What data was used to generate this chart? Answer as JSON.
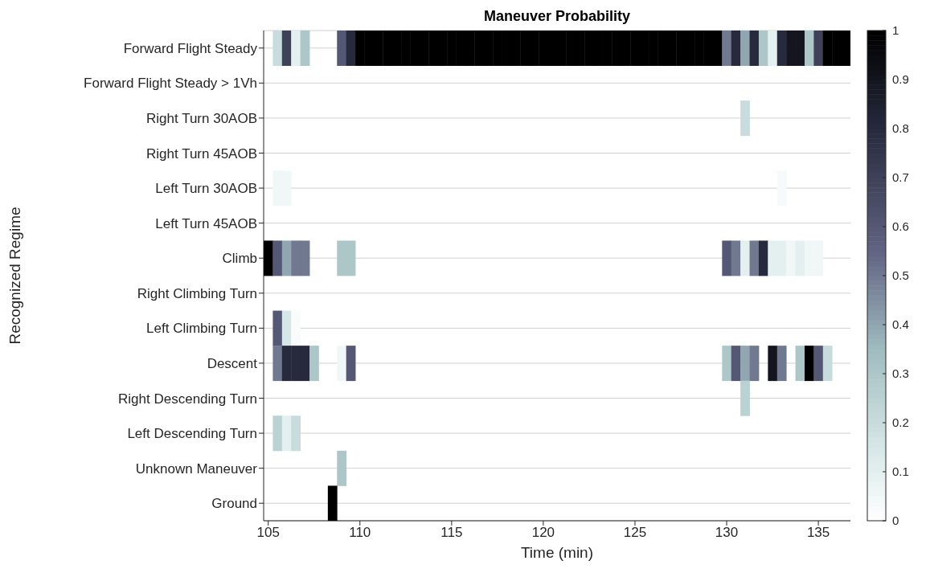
{
  "chart_data": {
    "type": "heatmap",
    "title": "Maneuver Probability",
    "xlabel": "Time (min)",
    "ylabel": "Recognized Regime",
    "x": [
      105,
      105.5,
      106,
      106.5,
      107,
      107.5,
      108,
      108.5,
      109,
      109.5,
      110,
      110.5,
      111,
      111.5,
      112,
      112.5,
      113,
      113.5,
      114,
      114.5,
      115,
      115.5,
      116,
      116.5,
      117,
      117.5,
      118,
      118.5,
      119,
      119.5,
      120,
      120.5,
      121,
      121.5,
      122,
      122.5,
      123,
      123.5,
      124,
      124.5,
      125,
      125.5,
      126,
      126.5,
      127,
      127.5,
      128,
      128.5,
      129,
      129.5,
      130,
      130.5,
      131,
      131.5,
      132,
      132.5,
      133,
      133.5,
      134,
      134.5,
      135,
      135.5,
      136,
      136.5
    ],
    "y_categories": [
      "Forward Flight Steady",
      "Forward Flight Steady > 1Vh",
      "Right Turn 30AOB",
      "Right Turn 45AOB",
      "Left Turn 30AOB",
      "Left Turn 45AOB",
      "Climb",
      "Right Climbing Turn",
      "Left Climbing Turn",
      "Descent",
      "Right Descending Turn",
      "Left Descending Turn",
      "Unknown Maneuver",
      "Ground"
    ],
    "cells": [
      [
        0,
        0.2,
        0.7,
        0.1,
        0.3,
        0,
        0,
        0,
        0.6,
        0.8,
        1,
        1,
        1,
        1,
        1,
        1,
        1,
        1,
        1,
        1,
        1,
        1,
        1,
        1,
        1,
        1,
        1,
        1,
        1,
        1,
        1,
        1,
        1,
        1,
        1,
        1,
        1,
        1,
        1,
        1,
        1,
        1,
        1,
        1,
        1,
        1,
        1,
        1,
        1,
        1,
        0.5,
        0.8,
        0.4,
        0.8,
        0.3,
        0.1,
        0.8,
        0.9,
        0.9,
        0.3,
        0.7,
        1,
        1,
        1
      ],
      [
        0,
        0,
        0,
        0,
        0,
        0,
        0,
        0,
        0,
        0,
        0,
        0,
        0,
        0,
        0,
        0,
        0,
        0,
        0,
        0,
        0,
        0,
        0,
        0,
        0,
        0,
        0,
        0,
        0,
        0,
        0,
        0,
        0,
        0,
        0,
        0,
        0,
        0,
        0,
        0,
        0,
        0,
        0,
        0,
        0,
        0,
        0,
        0,
        0,
        0,
        0,
        0,
        0,
        0,
        0,
        0,
        0,
        0,
        0,
        0,
        0,
        0,
        0,
        0
      ],
      [
        0,
        0,
        0,
        0,
        0,
        0,
        0,
        0,
        0,
        0,
        0,
        0,
        0,
        0,
        0,
        0,
        0,
        0,
        0,
        0,
        0,
        0,
        0,
        0,
        0,
        0,
        0,
        0,
        0,
        0,
        0,
        0,
        0,
        0,
        0,
        0,
        0,
        0,
        0,
        0,
        0,
        0,
        0,
        0,
        0,
        0,
        0,
        0,
        0,
        0,
        0,
        0,
        0.2,
        0,
        0,
        0,
        0,
        0,
        0,
        0,
        0,
        0,
        0,
        0
      ],
      [
        0,
        0,
        0,
        0,
        0,
        0,
        0,
        0,
        0,
        0,
        0,
        0,
        0,
        0,
        0,
        0,
        0,
        0,
        0,
        0,
        0,
        0,
        0,
        0,
        0,
        0,
        0,
        0,
        0,
        0,
        0,
        0,
        0,
        0,
        0,
        0,
        0,
        0,
        0,
        0,
        0,
        0,
        0,
        0,
        0,
        0,
        0,
        0,
        0,
        0,
        0,
        0,
        0,
        0,
        0,
        0,
        0,
        0,
        0,
        0,
        0,
        0,
        0,
        0
      ],
      [
        0,
        0.05,
        0.05,
        0,
        0,
        0,
        0,
        0,
        0,
        0,
        0,
        0,
        0,
        0,
        0,
        0,
        0,
        0,
        0,
        0,
        0,
        0,
        0,
        0,
        0,
        0,
        0,
        0,
        0,
        0,
        0,
        0,
        0,
        0,
        0,
        0,
        0,
        0,
        0,
        0,
        0,
        0,
        0,
        0,
        0,
        0,
        0,
        0,
        0,
        0,
        0,
        0,
        0,
        0,
        0,
        0,
        0.03,
        0,
        0,
        0,
        0,
        0,
        0,
        0
      ],
      [
        0,
        0,
        0,
        0,
        0,
        0,
        0,
        0,
        0,
        0,
        0,
        0,
        0,
        0,
        0,
        0,
        0,
        0,
        0,
        0,
        0,
        0,
        0,
        0,
        0,
        0,
        0,
        0,
        0,
        0,
        0,
        0,
        0,
        0,
        0,
        0,
        0,
        0,
        0,
        0,
        0,
        0,
        0,
        0,
        0,
        0,
        0,
        0,
        0,
        0,
        0,
        0,
        0,
        0,
        0,
        0,
        0,
        0,
        0,
        0,
        0,
        0,
        0,
        0
      ],
      [
        1,
        0.6,
        0.4,
        0.5,
        0.5,
        0,
        0,
        0,
        0.3,
        0.3,
        0,
        0,
        0,
        0,
        0,
        0,
        0,
        0,
        0,
        0,
        0,
        0,
        0,
        0,
        0,
        0,
        0,
        0,
        0,
        0,
        0,
        0,
        0,
        0,
        0,
        0,
        0,
        0,
        0,
        0,
        0,
        0,
        0,
        0,
        0,
        0,
        0,
        0,
        0,
        0,
        0.6,
        0.5,
        0.1,
        0.5,
        0.8,
        0.1,
        0.1,
        0.05,
        0.1,
        0.05,
        0.05,
        0,
        0,
        0
      ],
      [
        0,
        0,
        0,
        0,
        0,
        0,
        0,
        0,
        0,
        0,
        0,
        0,
        0,
        0,
        0,
        0,
        0,
        0,
        0,
        0,
        0,
        0,
        0,
        0,
        0,
        0,
        0,
        0,
        0,
        0,
        0,
        0,
        0,
        0,
        0,
        0,
        0,
        0,
        0,
        0,
        0,
        0,
        0,
        0,
        0,
        0,
        0,
        0,
        0,
        0,
        0,
        0,
        0,
        0,
        0,
        0,
        0,
        0,
        0,
        0,
        0,
        0,
        0,
        0
      ],
      [
        0,
        0.6,
        0.15,
        0.02,
        0,
        0,
        0,
        0,
        0,
        0,
        0,
        0,
        0,
        0,
        0,
        0,
        0,
        0,
        0,
        0,
        0,
        0,
        0,
        0,
        0,
        0,
        0,
        0,
        0,
        0,
        0,
        0,
        0,
        0,
        0,
        0,
        0,
        0,
        0,
        0,
        0,
        0,
        0,
        0,
        0,
        0,
        0,
        0,
        0,
        0,
        0,
        0,
        0,
        0,
        0,
        0,
        0,
        0,
        0,
        0,
        0,
        0,
        0,
        0
      ],
      [
        0,
        0.5,
        0.8,
        0.8,
        0.8,
        0.3,
        0,
        0,
        0.05,
        0.6,
        0,
        0,
        0,
        0,
        0,
        0,
        0,
        0,
        0,
        0,
        0,
        0,
        0,
        0,
        0,
        0,
        0,
        0,
        0,
        0,
        0,
        0,
        0,
        0,
        0,
        0,
        0,
        0,
        0,
        0,
        0,
        0,
        0,
        0,
        0,
        0,
        0,
        0,
        0,
        0,
        0.3,
        0.6,
        0.4,
        0.5,
        0,
        0.9,
        0.5,
        0,
        0.3,
        1,
        0.6,
        0.2,
        0,
        0
      ],
      [
        0,
        0,
        0,
        0,
        0,
        0,
        0,
        0,
        0,
        0,
        0,
        0,
        0,
        0,
        0,
        0,
        0,
        0,
        0,
        0,
        0,
        0,
        0,
        0,
        0,
        0,
        0,
        0,
        0,
        0,
        0,
        0,
        0,
        0,
        0,
        0,
        0,
        0,
        0,
        0,
        0,
        0,
        0,
        0,
        0,
        0,
        0,
        0,
        0,
        0,
        0,
        0,
        0.25,
        0,
        0,
        0,
        0,
        0,
        0,
        0,
        0,
        0,
        0,
        0
      ],
      [
        0,
        0.25,
        0.1,
        0.2,
        0,
        0,
        0,
        0,
        0,
        0,
        0,
        0,
        0,
        0,
        0,
        0,
        0,
        0,
        0,
        0,
        0,
        0,
        0,
        0,
        0,
        0,
        0,
        0,
        0,
        0,
        0,
        0,
        0,
        0,
        0,
        0,
        0,
        0,
        0,
        0,
        0,
        0,
        0,
        0,
        0,
        0,
        0,
        0,
        0,
        0,
        0,
        0,
        0,
        0,
        0,
        0,
        0,
        0,
        0,
        0,
        0,
        0,
        0,
        0
      ],
      [
        0,
        0,
        0,
        0,
        0,
        0,
        0,
        0,
        0.3,
        0,
        0,
        0,
        0,
        0,
        0,
        0,
        0,
        0,
        0,
        0,
        0,
        0,
        0,
        0,
        0,
        0,
        0,
        0,
        0,
        0,
        0,
        0,
        0,
        0,
        0,
        0,
        0,
        0,
        0,
        0,
        0,
        0,
        0,
        0,
        0,
        0,
        0,
        0,
        0,
        0,
        0,
        0,
        0,
        0,
        0,
        0,
        0,
        0,
        0,
        0,
        0,
        0,
        0,
        0
      ],
      [
        0,
        0,
        0,
        0,
        0,
        0,
        0,
        1,
        0,
        0,
        0,
        0,
        0,
        0,
        0,
        0,
        0,
        0,
        0,
        0,
        0,
        0,
        0,
        0,
        0,
        0,
        0,
        0,
        0,
        0,
        0,
        0,
        0,
        0,
        0,
        0,
        0,
        0,
        0,
        0,
        0,
        0,
        0,
        0,
        0,
        0,
        0,
        0,
        0,
        0,
        0,
        0,
        0,
        0,
        0,
        0,
        0,
        0,
        0,
        0,
        0,
        0,
        0,
        0
      ]
    ],
    "xlim": [
      104.75,
      136.75
    ],
    "xticks": [
      105,
      110,
      115,
      120,
      125,
      130,
      135
    ],
    "clim": [
      0,
      1
    ],
    "cticks": [
      0,
      0.1,
      0.2,
      0.3,
      0.4,
      0.5,
      0.6,
      0.7,
      0.8,
      0.9,
      1
    ],
    "grid": "y"
  }
}
